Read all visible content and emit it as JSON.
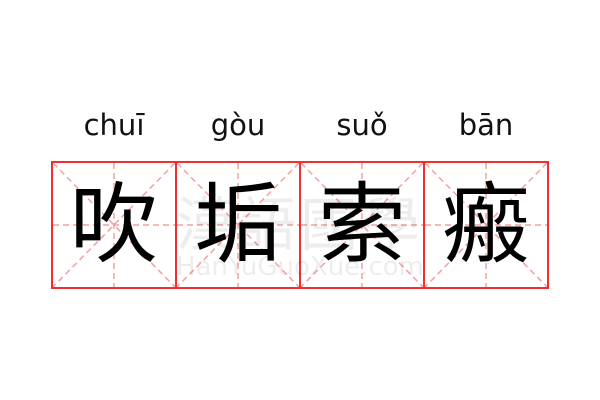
{
  "pinyin": [
    "chuī",
    "gòu",
    "suǒ",
    "bān"
  ],
  "characters": [
    "吹",
    "垢",
    "索",
    "瘢"
  ],
  "watermark": {
    "title": "漢語國學",
    "site": "HanYuGuoXue.com"
  },
  "colors": {
    "grid_border": "#f03030",
    "guide_lines": "#f5a0a0",
    "text": "#000000"
  }
}
